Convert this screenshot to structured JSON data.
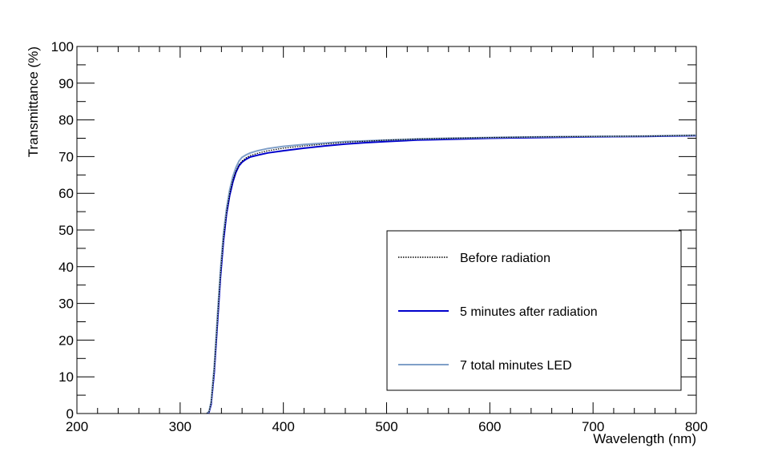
{
  "chart_data": {
    "type": "line",
    "xlabel": "Wavelength (nm)",
    "ylabel": "Transmittance (%)",
    "xlim": [
      200,
      800
    ],
    "ylim": [
      0,
      100
    ],
    "x_ticks": [
      200,
      300,
      400,
      500,
      600,
      700,
      800
    ],
    "y_ticks": [
      0,
      10,
      20,
      30,
      40,
      50,
      60,
      70,
      80,
      90,
      100
    ],
    "grid": false,
    "legend_position": "bottom-right",
    "series": [
      {
        "name": "Before radiation",
        "color": "#000000",
        "style": "dotted",
        "x": [
          326,
          328,
          330,
          333,
          336,
          339,
          342,
          345,
          348,
          351,
          354,
          357,
          360,
          364,
          368,
          375,
          385,
          400,
          420,
          440,
          460,
          480,
          500,
          530,
          560,
          600,
          650,
          700,
          750,
          800
        ],
        "y": [
          0,
          0.5,
          3,
          12,
          25,
          38,
          48,
          55,
          60,
          63.5,
          66,
          67.8,
          68.8,
          69.7,
          70.3,
          70.9,
          71.6,
          72.3,
          72.9,
          73.4,
          73.9,
          74.2,
          74.5,
          74.8,
          75.0,
          75.2,
          75.4,
          75.5,
          75.6,
          75.8
        ]
      },
      {
        "name": "5 minutes after radiation",
        "color": "#0000cc",
        "style": "solid",
        "x": [
          326,
          328,
          330,
          333,
          336,
          339,
          342,
          345,
          348,
          351,
          354,
          357,
          360,
          364,
          368,
          375,
          385,
          400,
          420,
          440,
          460,
          480,
          500,
          530,
          560,
          600,
          650,
          700,
          750,
          800
        ],
        "y": [
          0,
          0.4,
          2.5,
          11,
          24,
          37,
          47,
          54.5,
          59.5,
          63,
          65.7,
          67.5,
          68.5,
          69.3,
          69.9,
          70.4,
          71.0,
          71.6,
          72.3,
          72.9,
          73.4,
          73.8,
          74.1,
          74.5,
          74.7,
          75.0,
          75.2,
          75.4,
          75.5,
          75.7
        ]
      },
      {
        "name": "7 total minutes LED",
        "color": "#7f9fc8",
        "style": "solid",
        "x": [
          326,
          328,
          330,
          333,
          336,
          339,
          342,
          345,
          348,
          351,
          354,
          357,
          360,
          364,
          368,
          375,
          385,
          400,
          420,
          440,
          460,
          480,
          500,
          530,
          560,
          600,
          650,
          700,
          750,
          800
        ],
        "y": [
          0,
          0.6,
          3.2,
          12.5,
          26,
          39,
          49,
          56,
          61,
          64.5,
          67,
          68.8,
          69.8,
          70.5,
          71.0,
          71.6,
          72.2,
          72.8,
          73.3,
          73.7,
          74.1,
          74.3,
          74.5,
          74.8,
          75.0,
          75.2,
          75.4,
          75.5,
          75.6,
          75.8
        ]
      }
    ]
  }
}
